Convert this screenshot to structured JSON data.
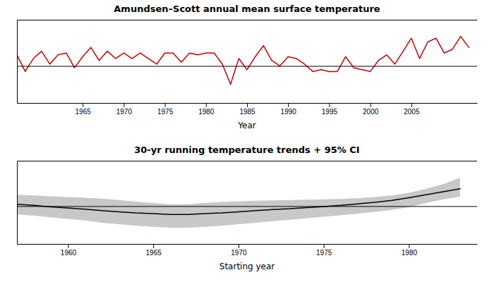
{
  "chart_data": [
    {
      "type": "line",
      "title": "Amundsen–Scott annual mean surface temperature",
      "x_label": "Year",
      "color": "#cc0000",
      "x": [
        1957,
        1958,
        1959,
        1960,
        1961,
        1962,
        1963,
        1964,
        1965,
        1966,
        1967,
        1968,
        1969,
        1970,
        1971,
        1972,
        1973,
        1974,
        1975,
        1976,
        1977,
        1978,
        1979,
        1980,
        1981,
        1982,
        1983,
        1984,
        1985,
        1986,
        1987,
        1988,
        1989,
        1990,
        1991,
        1992,
        1993,
        1994,
        1995,
        1996,
        1997,
        1998,
        1999,
        2000,
        2001,
        2002,
        2003,
        2004,
        2005,
        2006,
        2007,
        2008,
        2009,
        2010,
        2011,
        2012
      ],
      "values": [
        0.6,
        -0.3,
        0.4,
        0.8,
        0.1,
        0.6,
        0.7,
        -0.1,
        0.5,
        1.0,
        0.3,
        0.8,
        0.4,
        0.7,
        0.4,
        0.7,
        0.4,
        0.1,
        0.7,
        0.7,
        0.2,
        0.7,
        0.6,
        0.7,
        0.7,
        0.1,
        -1.0,
        0.4,
        -0.2,
        0.5,
        1.1,
        0.3,
        0.0,
        0.5,
        0.4,
        0.1,
        -0.3,
        -0.2,
        -0.3,
        -0.3,
        0.5,
        -0.1,
        -0.2,
        -0.3,
        0.3,
        0.6,
        0.1,
        0.8,
        1.5,
        0.4,
        1.3,
        1.5,
        0.7,
        0.9,
        1.6,
        1.0
      ],
      "xlim": [
        1957,
        2013
      ],
      "xticks": [
        1965,
        1970,
        1975,
        1980,
        1985,
        1990,
        1995,
        2000,
        2005
      ],
      "ylim": [
        -2.0,
        2.5
      ],
      "yticks": [
        0
      ],
      "grid": "y",
      "tick_labels": "x"
    },
    {
      "type": "line",
      "title": "30-yr running temperature trends + 95% CI",
      "x_label": "Starting year",
      "color": "#000000",
      "x": [
        1957,
        1958,
        1959,
        1960,
        1961,
        1962,
        1963,
        1964,
        1965,
        1966,
        1967,
        1968,
        1969,
        1970,
        1971,
        1972,
        1973,
        1974,
        1975,
        1976,
        1977,
        1978,
        1979,
        1980,
        1981,
        1982,
        1983
      ],
      "values": [
        0.005,
        0.002,
        -0.002,
        -0.005,
        -0.008,
        -0.012,
        -0.015,
        -0.018,
        -0.02,
        -0.022,
        -0.022,
        -0.02,
        -0.018,
        -0.015,
        -0.012,
        -0.009,
        -0.007,
        -0.004,
        -0.001,
        0.002,
        0.006,
        0.01,
        0.015,
        0.022,
        0.03,
        0.038,
        0.046
      ],
      "ci_lower": [
        -0.022,
        -0.025,
        -0.03,
        -0.034,
        -0.038,
        -0.044,
        -0.048,
        -0.052,
        -0.055,
        -0.057,
        -0.057,
        -0.055,
        -0.052,
        -0.048,
        -0.044,
        -0.04,
        -0.036,
        -0.032,
        -0.028,
        -0.024,
        -0.02,
        -0.015,
        -0.01,
        -0.003,
        0.008,
        0.018,
        0.025
      ],
      "ci_upper": [
        0.03,
        0.028,
        0.026,
        0.024,
        0.022,
        0.02,
        0.016,
        0.012,
        0.008,
        0.005,
        0.005,
        0.008,
        0.011,
        0.013,
        0.014,
        0.015,
        0.016,
        0.017,
        0.018,
        0.019,
        0.021,
        0.024,
        0.028,
        0.035,
        0.046,
        0.058,
        0.075
      ],
      "xlim": [
        1957,
        1984
      ],
      "xticks": [
        1960,
        1965,
        1970,
        1975,
        1980
      ],
      "ylim": [
        -0.1,
        0.12
      ],
      "yticks": [
        0
      ],
      "grid": "y",
      "tick_labels": "x"
    }
  ]
}
